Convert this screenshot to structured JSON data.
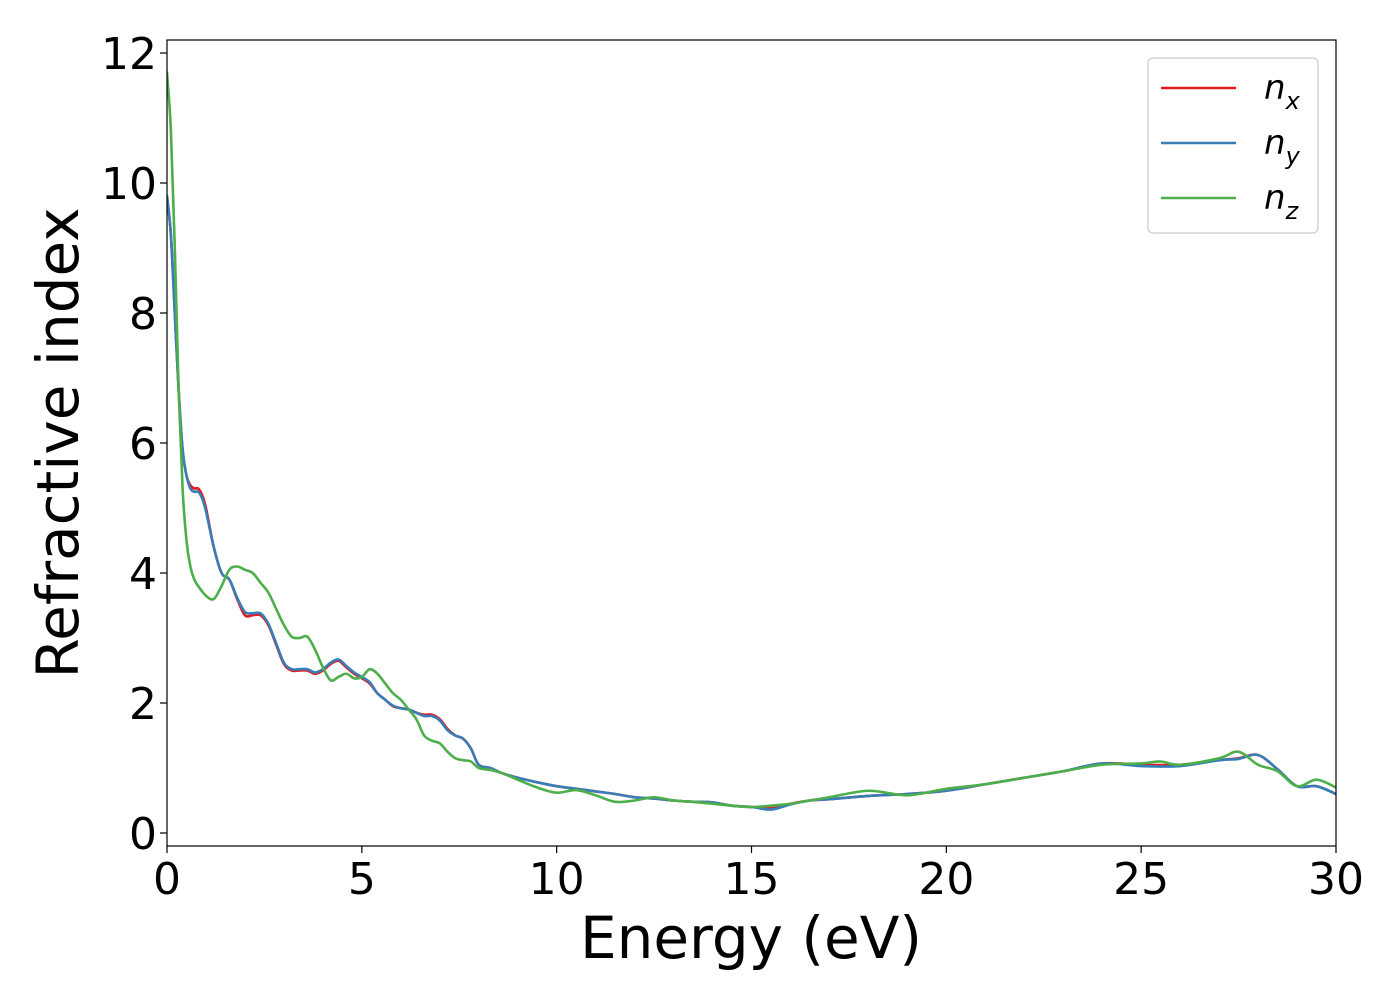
{
  "chart_data": {
    "type": "line",
    "title": "",
    "xlabel": "Energy (eV)",
    "ylabel": "Refractive index",
    "xlim": [
      0,
      30
    ],
    "ylim": [
      -0.2,
      12.2
    ],
    "xticks": [
      0,
      5,
      10,
      15,
      20,
      25,
      30
    ],
    "yticks": [
      0,
      2,
      4,
      6,
      8,
      10,
      12
    ],
    "xtick_labels": [
      "0",
      "5",
      "10",
      "15",
      "20",
      "25",
      "30"
    ],
    "ytick_labels": [
      "0",
      "2",
      "4",
      "6",
      "8",
      "10",
      "12"
    ],
    "grid": false,
    "legend_position": "top-right",
    "series": [
      {
        "name": "n_x",
        "label_base": "n",
        "label_sub": "x",
        "color": "#e41a1c",
        "x": [
          0,
          0.1,
          0.2,
          0.3,
          0.4,
          0.5,
          0.6,
          0.7,
          0.8,
          0.9,
          1.0,
          1.2,
          1.4,
          1.6,
          1.8,
          2.0,
          2.2,
          2.4,
          2.6,
          2.8,
          3.0,
          3.2,
          3.4,
          3.6,
          3.8,
          4.0,
          4.2,
          4.4,
          4.6,
          4.8,
          5.0,
          5.2,
          5.4,
          5.6,
          5.8,
          6.0,
          6.2,
          6.4,
          6.6,
          6.8,
          7.0,
          7.2,
          7.4,
          7.6,
          7.8,
          8.0,
          8.3,
          8.6,
          9.0,
          9.5,
          10.0,
          10.5,
          11.0,
          11.5,
          12.0,
          12.5,
          13.0,
          13.5,
          14.0,
          14.5,
          15.0,
          15.5,
          16.0,
          16.5,
          17.0,
          18.0,
          19.0,
          20.0,
          21.0,
          22.0,
          23.0,
          24.0,
          25.0,
          26.0,
          27.0,
          27.5,
          28.0,
          28.5,
          29.0,
          29.5,
          30.0
        ],
        "y": [
          9.8,
          9.2,
          8.0,
          6.8,
          5.9,
          5.5,
          5.35,
          5.3,
          5.3,
          5.2,
          5.0,
          4.4,
          4.0,
          3.9,
          3.6,
          3.35,
          3.35,
          3.35,
          3.2,
          2.9,
          2.6,
          2.5,
          2.5,
          2.5,
          2.45,
          2.5,
          2.6,
          2.65,
          2.55,
          2.45,
          2.38,
          2.3,
          2.15,
          2.05,
          1.95,
          1.92,
          1.9,
          1.85,
          1.82,
          1.82,
          1.75,
          1.6,
          1.5,
          1.45,
          1.3,
          1.05,
          1.0,
          0.92,
          0.85,
          0.78,
          0.72,
          0.68,
          0.64,
          0.6,
          0.55,
          0.53,
          0.5,
          0.48,
          0.47,
          0.42,
          0.4,
          0.38,
          0.45,
          0.5,
          0.52,
          0.57,
          0.6,
          0.65,
          0.75,
          0.85,
          0.95,
          1.07,
          1.05,
          1.05,
          1.12,
          1.15,
          1.2,
          0.98,
          0.72,
          0.72,
          0.6
        ]
      },
      {
        "name": "n_y",
        "label_base": "n",
        "label_sub": "y",
        "color": "#377eb8",
        "x": [
          0,
          0.1,
          0.2,
          0.3,
          0.4,
          0.5,
          0.6,
          0.7,
          0.8,
          0.9,
          1.0,
          1.2,
          1.4,
          1.6,
          1.8,
          2.0,
          2.2,
          2.4,
          2.6,
          2.8,
          3.0,
          3.2,
          3.4,
          3.6,
          3.8,
          4.0,
          4.2,
          4.4,
          4.6,
          4.8,
          5.0,
          5.2,
          5.4,
          5.6,
          5.8,
          6.0,
          6.2,
          6.4,
          6.6,
          6.8,
          7.0,
          7.2,
          7.4,
          7.6,
          7.8,
          8.0,
          8.3,
          8.6,
          9.0,
          9.5,
          10.0,
          10.5,
          11.0,
          11.5,
          12.0,
          12.5,
          13.0,
          13.5,
          14.0,
          14.5,
          15.0,
          15.5,
          16.0,
          16.5,
          17.0,
          18.0,
          19.0,
          20.0,
          21.0,
          22.0,
          23.0,
          24.0,
          25.0,
          26.0,
          27.0,
          27.5,
          28.0,
          28.5,
          29.0,
          29.5,
          30.0
        ],
        "y": [
          9.8,
          9.2,
          8.0,
          6.8,
          5.9,
          5.5,
          5.3,
          5.25,
          5.25,
          5.15,
          4.95,
          4.4,
          4.0,
          3.9,
          3.62,
          3.4,
          3.38,
          3.38,
          3.22,
          2.92,
          2.62,
          2.52,
          2.52,
          2.52,
          2.47,
          2.52,
          2.62,
          2.67,
          2.57,
          2.47,
          2.4,
          2.32,
          2.15,
          2.05,
          1.96,
          1.92,
          1.9,
          1.85,
          1.8,
          1.8,
          1.73,
          1.58,
          1.5,
          1.45,
          1.3,
          1.05,
          1.0,
          0.92,
          0.85,
          0.78,
          0.72,
          0.68,
          0.64,
          0.6,
          0.55,
          0.53,
          0.5,
          0.48,
          0.47,
          0.42,
          0.4,
          0.36,
          0.44,
          0.5,
          0.52,
          0.57,
          0.6,
          0.65,
          0.75,
          0.85,
          0.95,
          1.07,
          1.03,
          1.03,
          1.12,
          1.14,
          1.2,
          0.98,
          0.72,
          0.72,
          0.6
        ]
      },
      {
        "name": "n_z",
        "label_base": "n",
        "label_sub": "z",
        "color": "#4daf4a",
        "x": [
          0,
          0.1,
          0.2,
          0.3,
          0.4,
          0.5,
          0.6,
          0.7,
          0.8,
          1.0,
          1.2,
          1.4,
          1.6,
          1.8,
          2.0,
          2.2,
          2.4,
          2.6,
          2.8,
          3.0,
          3.2,
          3.4,
          3.6,
          3.8,
          4.0,
          4.2,
          4.4,
          4.6,
          4.8,
          5.0,
          5.2,
          5.4,
          5.6,
          5.8,
          6.0,
          6.2,
          6.4,
          6.6,
          6.8,
          7.0,
          7.2,
          7.4,
          7.6,
          7.8,
          8.0,
          8.3,
          8.6,
          9.0,
          9.5,
          10.0,
          10.5,
          11.0,
          11.5,
          12.0,
          12.5,
          13.0,
          13.5,
          14.0,
          14.5,
          15.0,
          15.5,
          16.0,
          16.5,
          17.0,
          18.0,
          19.0,
          20.0,
          21.0,
          22.0,
          23.0,
          24.0,
          25.0,
          25.5,
          26.0,
          27.0,
          27.5,
          28.0,
          28.5,
          29.0,
          29.5,
          30.0
        ],
        "y": [
          11.7,
          10.8,
          9.0,
          6.8,
          5.3,
          4.5,
          4.1,
          3.9,
          3.8,
          3.65,
          3.6,
          3.8,
          4.05,
          4.1,
          4.05,
          4.0,
          3.85,
          3.7,
          3.45,
          3.2,
          3.02,
          3.0,
          3.02,
          2.82,
          2.55,
          2.35,
          2.4,
          2.45,
          2.38,
          2.4,
          2.52,
          2.45,
          2.3,
          2.15,
          2.05,
          1.9,
          1.75,
          1.5,
          1.42,
          1.38,
          1.25,
          1.15,
          1.12,
          1.1,
          1.0,
          0.97,
          0.92,
          0.82,
          0.7,
          0.62,
          0.66,
          0.58,
          0.48,
          0.5,
          0.55,
          0.5,
          0.48,
          0.45,
          0.42,
          0.4,
          0.42,
          0.45,
          0.5,
          0.55,
          0.65,
          0.58,
          0.68,
          0.75,
          0.85,
          0.95,
          1.05,
          1.07,
          1.1,
          1.05,
          1.15,
          1.25,
          1.05,
          0.95,
          0.72,
          0.82,
          0.7
        ]
      }
    ]
  }
}
